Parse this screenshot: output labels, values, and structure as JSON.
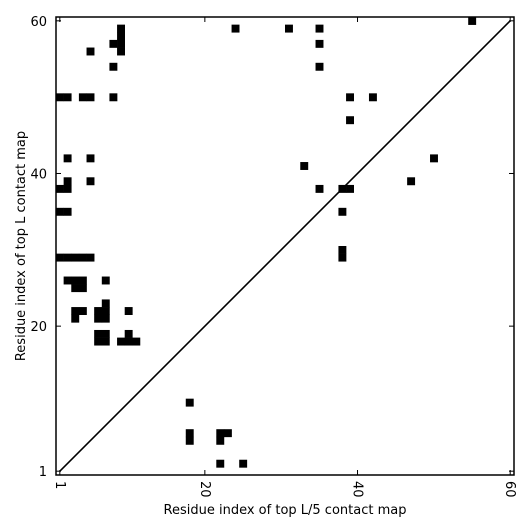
{
  "chart_data": {
    "type": "heatmap",
    "title": "",
    "xlabel": "Residue index of top L/5 contact map",
    "ylabel": "Residue index of top L contact map",
    "xlim": [
      0.5,
      60.5
    ],
    "ylim": [
      0.5,
      60.5
    ],
    "xticks": [
      1,
      20,
      40,
      60
    ],
    "xtick_labels": [
      "1",
      "20",
      "40",
      "60"
    ],
    "yticks": [
      1,
      20,
      40,
      60
    ],
    "ytick_labels": [
      "1",
      "20",
      "40",
      "60"
    ],
    "diagonal": true,
    "grid": false,
    "color": "#000000",
    "upper_contacts_top_L": [
      [
        55,
        60
      ],
      [
        31,
        59
      ],
      [
        24,
        59
      ],
      [
        35,
        59
      ],
      [
        9,
        59
      ],
      [
        9,
        58
      ],
      [
        8,
        57
      ],
      [
        9,
        57
      ],
      [
        35,
        57
      ],
      [
        9,
        56
      ],
      [
        5,
        56
      ],
      [
        8,
        54
      ],
      [
        35,
        54
      ],
      [
        1,
        50
      ],
      [
        2,
        50
      ],
      [
        4,
        50
      ],
      [
        5,
        50
      ],
      [
        8,
        50
      ],
      [
        39,
        50
      ],
      [
        42,
        50
      ],
      [
        39,
        47
      ],
      [
        2,
        42
      ],
      [
        5,
        42
      ],
      [
        50,
        42
      ],
      [
        33,
        41
      ],
      [
        2,
        39
      ],
      [
        5,
        39
      ],
      [
        47,
        39
      ],
      [
        1,
        38
      ],
      [
        2,
        38
      ],
      [
        35,
        38
      ],
      [
        38,
        38
      ],
      [
        39,
        38
      ],
      [
        1,
        35
      ],
      [
        2,
        35
      ],
      [
        38,
        35
      ],
      [
        38,
        30
      ],
      [
        38,
        29
      ],
      [
        1,
        29
      ],
      [
        2,
        29
      ],
      [
        3,
        29
      ],
      [
        4,
        29
      ],
      [
        5,
        29
      ],
      [
        3,
        26
      ],
      [
        4,
        26
      ],
      [
        2,
        26
      ],
      [
        7,
        26
      ],
      [
        3,
        25
      ],
      [
        4,
        25
      ],
      [
        7,
        23
      ],
      [
        3,
        22
      ],
      [
        4,
        22
      ],
      [
        6,
        22
      ],
      [
        7,
        22
      ],
      [
        10,
        22
      ],
      [
        3,
        21
      ],
      [
        6,
        21
      ],
      [
        7,
        21
      ],
      [
        10,
        19
      ],
      [
        6,
        19
      ],
      [
        7,
        19
      ],
      [
        6,
        18
      ],
      [
        7,
        18
      ],
      [
        9,
        18
      ],
      [
        10,
        18
      ],
      [
        11,
        18
      ]
    ],
    "lower_contacts_top_L5": [
      [
        18,
        10
      ],
      [
        18,
        6
      ],
      [
        18,
        5
      ],
      [
        22,
        6
      ],
      [
        23,
        6
      ],
      [
        22,
        5
      ],
      [
        22,
        2
      ],
      [
        25,
        2
      ]
    ]
  }
}
